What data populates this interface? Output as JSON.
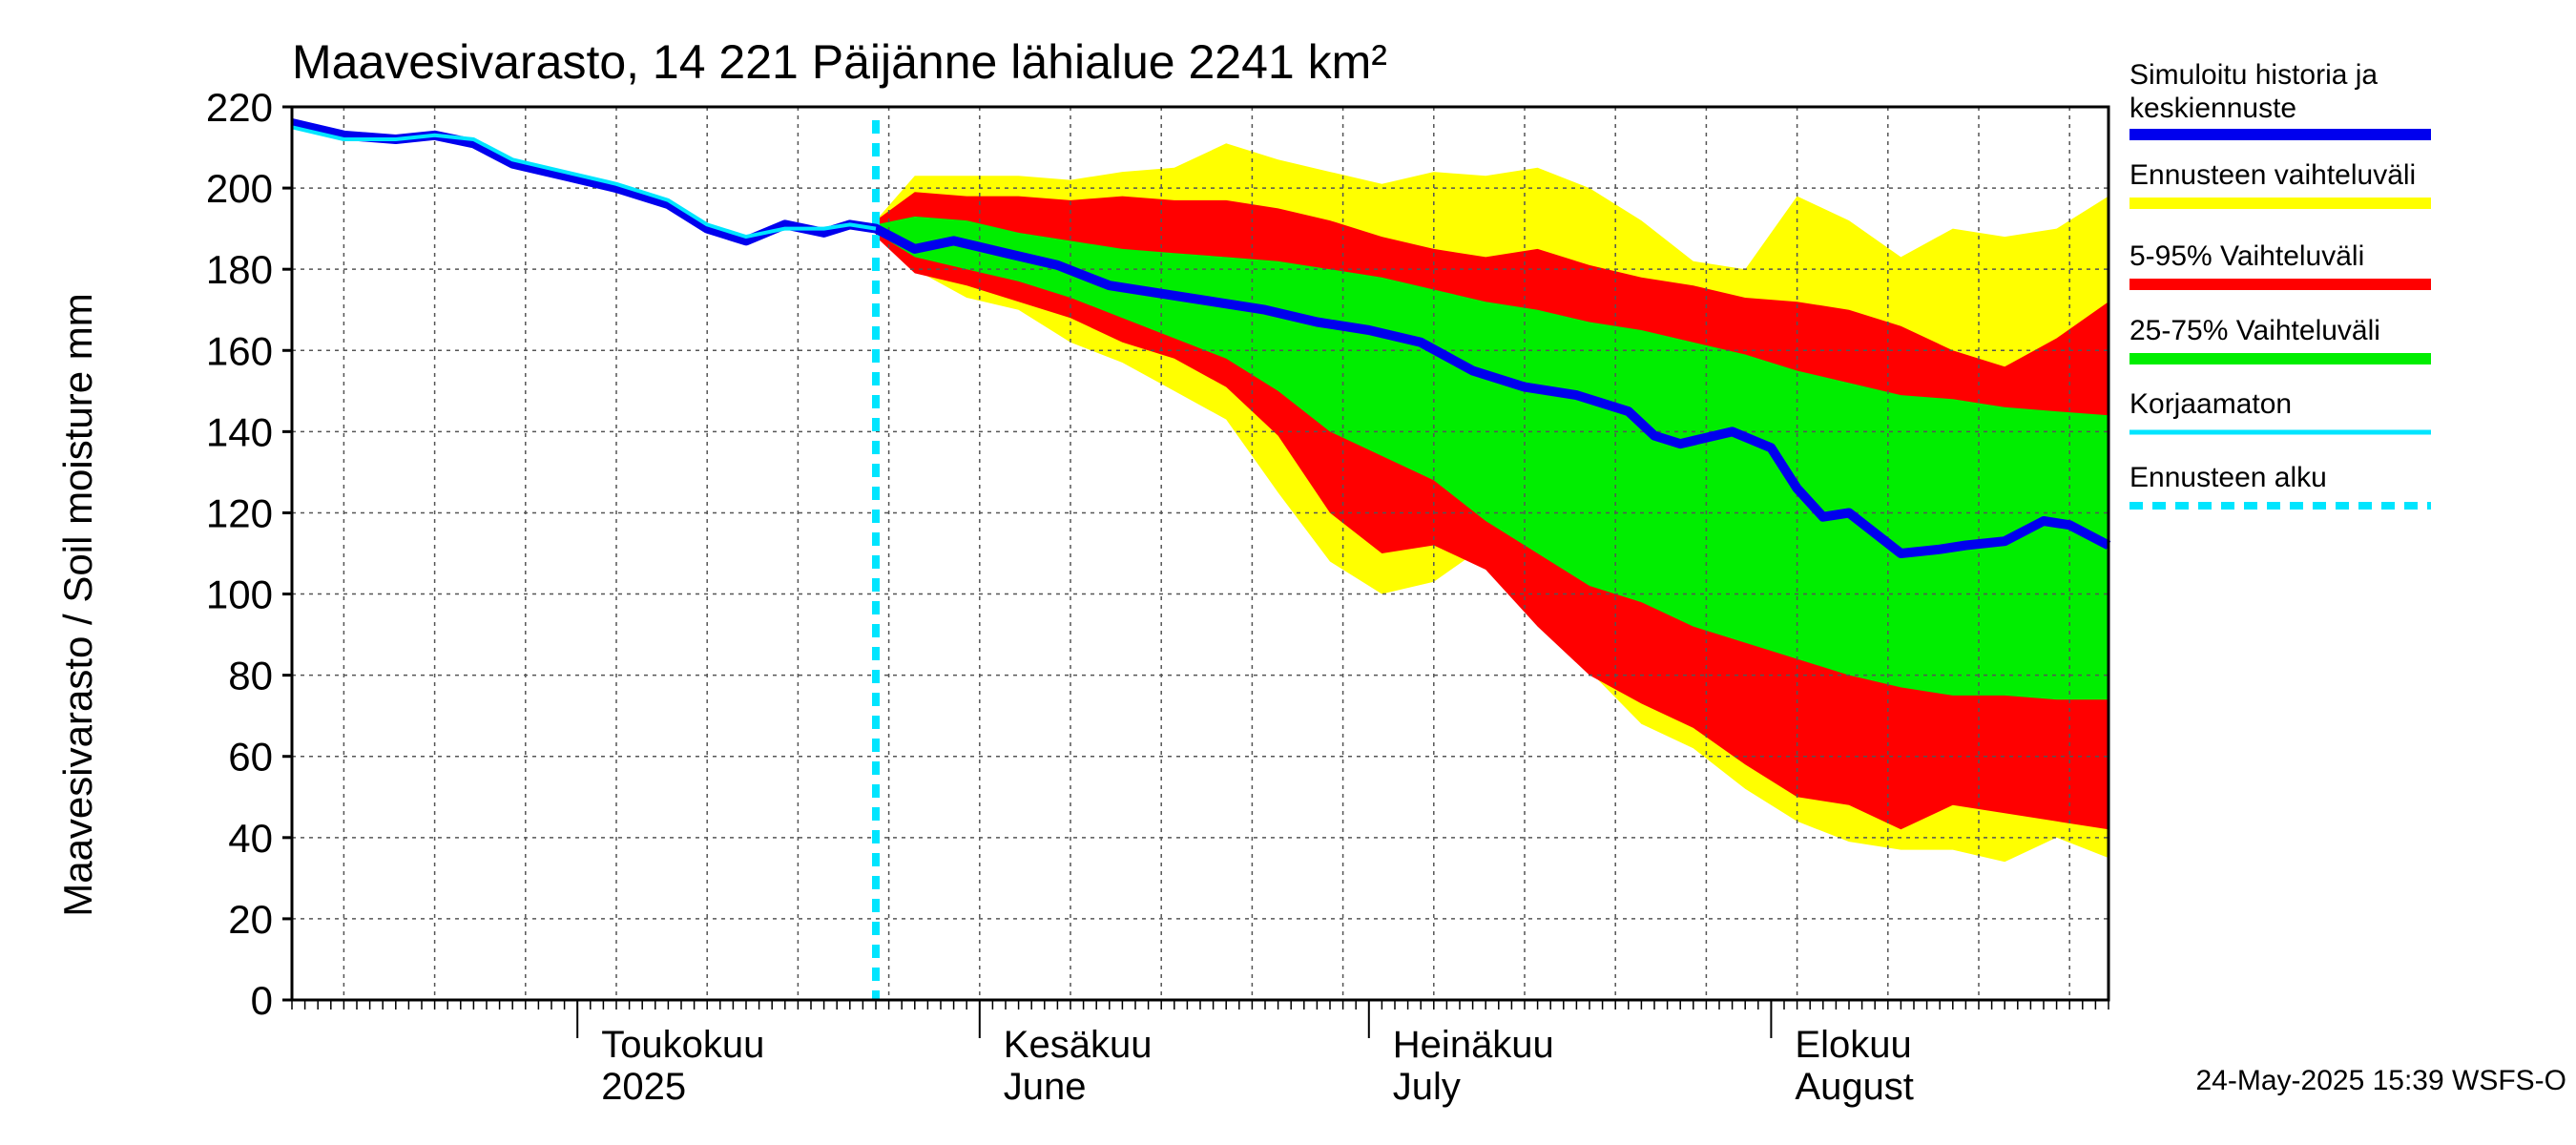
{
  "chart_data": {
    "type": "area",
    "title": "Maavesivarasto, 14 221 Päijänne lähialue 2241 km²",
    "ylabel": "Maavesivarasto / Soil moisture   mm",
    "ylim": [
      0,
      220
    ],
    "yticks": [
      0,
      20,
      40,
      60,
      80,
      100,
      120,
      140,
      160,
      180,
      200,
      220
    ],
    "xlim": [
      "2025-04-09",
      "2025-08-27"
    ],
    "grid": true,
    "forecast_start": "2025-05-24",
    "month_labels": [
      {
        "date": "2025-05-01",
        "fi": "Toukokuu",
        "en": "2025"
      },
      {
        "date": "2025-06-01",
        "fi": "Kesäkuu",
        "en": "June"
      },
      {
        "date": "2025-07-01",
        "fi": "Heinäkuu",
        "en": "July"
      },
      {
        "date": "2025-08-01",
        "fi": "Elokuu",
        "en": "August"
      }
    ],
    "legend": {
      "placement": "right",
      "items": [
        {
          "label": "Simuloitu historia ja",
          "label2": "keskiennuste",
          "color": "#0000ee",
          "style": "line"
        },
        {
          "label": "Ennusteen vaihteluväli",
          "color": "#ffff00",
          "style": "band"
        },
        {
          "label": "5-95% Vaihteluväli",
          "color": "#ff0000",
          "style": "band"
        },
        {
          "label": "25-75% Vaihteluväli",
          "color": "#00ee00",
          "style": "band"
        },
        {
          "label": "Korjaamaton",
          "color": "#00e5ff",
          "style": "line"
        },
        {
          "label": "Ennusteen alku",
          "color": "#00e5ff",
          "style": "dashed"
        }
      ]
    },
    "series": [
      {
        "name": "Simuloitu historia ja keskiennuste",
        "color": "#0000ee",
        "x": [
          "2025-04-09",
          "2025-04-13",
          "2025-04-17",
          "2025-04-20",
          "2025-04-23",
          "2025-04-26",
          "2025-04-30",
          "2025-05-04",
          "2025-05-08",
          "2025-05-11",
          "2025-05-14",
          "2025-05-17",
          "2025-05-20",
          "2025-05-22",
          "2025-05-24",
          "2025-05-27",
          "2025-05-30",
          "2025-06-03",
          "2025-06-07",
          "2025-06-11",
          "2025-06-15",
          "2025-06-19",
          "2025-06-23",
          "2025-06-27",
          "2025-07-01",
          "2025-07-05",
          "2025-07-09",
          "2025-07-13",
          "2025-07-17",
          "2025-07-21",
          "2025-07-23",
          "2025-07-25",
          "2025-07-29",
          "2025-08-01",
          "2025-08-03",
          "2025-08-05",
          "2025-08-07",
          "2025-08-11",
          "2025-08-14",
          "2025-08-16",
          "2025-08-19",
          "2025-08-22",
          "2025-08-24",
          "2025-08-27"
        ],
        "values": [
          216,
          213,
          212,
          213,
          211,
          206,
          203,
          200,
          196,
          190,
          187,
          191,
          189,
          191,
          190,
          185,
          187,
          184,
          181,
          176,
          174,
          172,
          170,
          167,
          165,
          162,
          155,
          151,
          149,
          145,
          139,
          137,
          140,
          136,
          126,
          119,
          120,
          110,
          111,
          112,
          113,
          118,
          117,
          112
        ]
      },
      {
        "name": "Korjaamaton",
        "color": "#00e5ff",
        "x": [
          "2025-04-09",
          "2025-04-13",
          "2025-04-17",
          "2025-04-20",
          "2025-04-23",
          "2025-04-26",
          "2025-04-30",
          "2025-05-04",
          "2025-05-08",
          "2025-05-11",
          "2025-05-14",
          "2025-05-17",
          "2025-05-20",
          "2025-05-22",
          "2025-05-24"
        ],
        "values": [
          215,
          212,
          212,
          213,
          212,
          207,
          204,
          201,
          197,
          191,
          188,
          190,
          190,
          191,
          190
        ]
      }
    ],
    "bands": [
      {
        "name": "Ennusteen vaihteluväli",
        "color": "#ffff00",
        "x": [
          "2025-05-24",
          "2025-05-27",
          "2025-05-31",
          "2025-06-04",
          "2025-06-08",
          "2025-06-12",
          "2025-06-16",
          "2025-06-20",
          "2025-06-24",
          "2025-06-28",
          "2025-07-02",
          "2025-07-06",
          "2025-07-10",
          "2025-07-14",
          "2025-07-18",
          "2025-07-22",
          "2025-07-26",
          "2025-07-30",
          "2025-08-03",
          "2025-08-07",
          "2025-08-11",
          "2025-08-15",
          "2025-08-19",
          "2025-08-23",
          "2025-08-27"
        ],
        "upper": [
          192,
          203,
          203,
          203,
          202,
          204,
          205,
          211,
          207,
          204,
          201,
          204,
          203,
          205,
          200,
          192,
          182,
          180,
          198,
          192,
          183,
          190,
          188,
          190,
          198
        ],
        "lower": [
          188,
          180,
          173,
          170,
          162,
          157,
          150,
          143,
          125,
          108,
          100,
          103,
          112,
          97,
          81,
          68,
          62,
          52,
          44,
          39,
          37,
          37,
          34,
          40,
          35
        ]
      },
      {
        "name": "5-95% Vaihteluväli",
        "color": "#ff0000",
        "x": [
          "2025-05-24",
          "2025-05-27",
          "2025-05-31",
          "2025-06-04",
          "2025-06-08",
          "2025-06-12",
          "2025-06-16",
          "2025-06-20",
          "2025-06-24",
          "2025-06-28",
          "2025-07-02",
          "2025-07-06",
          "2025-07-10",
          "2025-07-14",
          "2025-07-18",
          "2025-07-22",
          "2025-07-26",
          "2025-07-30",
          "2025-08-03",
          "2025-08-07",
          "2025-08-11",
          "2025-08-15",
          "2025-08-19",
          "2025-08-23",
          "2025-08-27"
        ],
        "upper": [
          192,
          199,
          198,
          198,
          197,
          198,
          197,
          197,
          195,
          192,
          188,
          185,
          183,
          185,
          181,
          178,
          176,
          173,
          172,
          170,
          166,
          160,
          156,
          163,
          172
        ],
        "lower": [
          188,
          179,
          176,
          172,
          168,
          162,
          158,
          151,
          139,
          120,
          110,
          112,
          106,
          92,
          80,
          73,
          67,
          58,
          50,
          48,
          42,
          48,
          46,
          44,
          42
        ]
      },
      {
        "name": "25-75% Vaihteluväli",
        "color": "#00ee00",
        "x": [
          "2025-05-24",
          "2025-05-27",
          "2025-05-31",
          "2025-06-04",
          "2025-06-08",
          "2025-06-12",
          "2025-06-16",
          "2025-06-20",
          "2025-06-24",
          "2025-06-28",
          "2025-07-02",
          "2025-07-06",
          "2025-07-10",
          "2025-07-14",
          "2025-07-18",
          "2025-07-22",
          "2025-07-26",
          "2025-07-30",
          "2025-08-03",
          "2025-08-07",
          "2025-08-11",
          "2025-08-15",
          "2025-08-19",
          "2025-08-23",
          "2025-08-27"
        ],
        "upper": [
          191,
          193,
          192,
          189,
          187,
          185,
          184,
          183,
          182,
          180,
          178,
          175,
          172,
          170,
          167,
          165,
          162,
          159,
          155,
          152,
          149,
          148,
          146,
          145,
          144
        ],
        "lower": [
          189,
          183,
          180,
          177,
          173,
          168,
          163,
          158,
          150,
          140,
          134,
          128,
          118,
          110,
          102,
          98,
          92,
          88,
          84,
          80,
          77,
          75,
          75,
          74,
          74
        ]
      }
    ]
  },
  "footer": {
    "stamp": "24-May-2025 15:39 WSFS-O"
  }
}
